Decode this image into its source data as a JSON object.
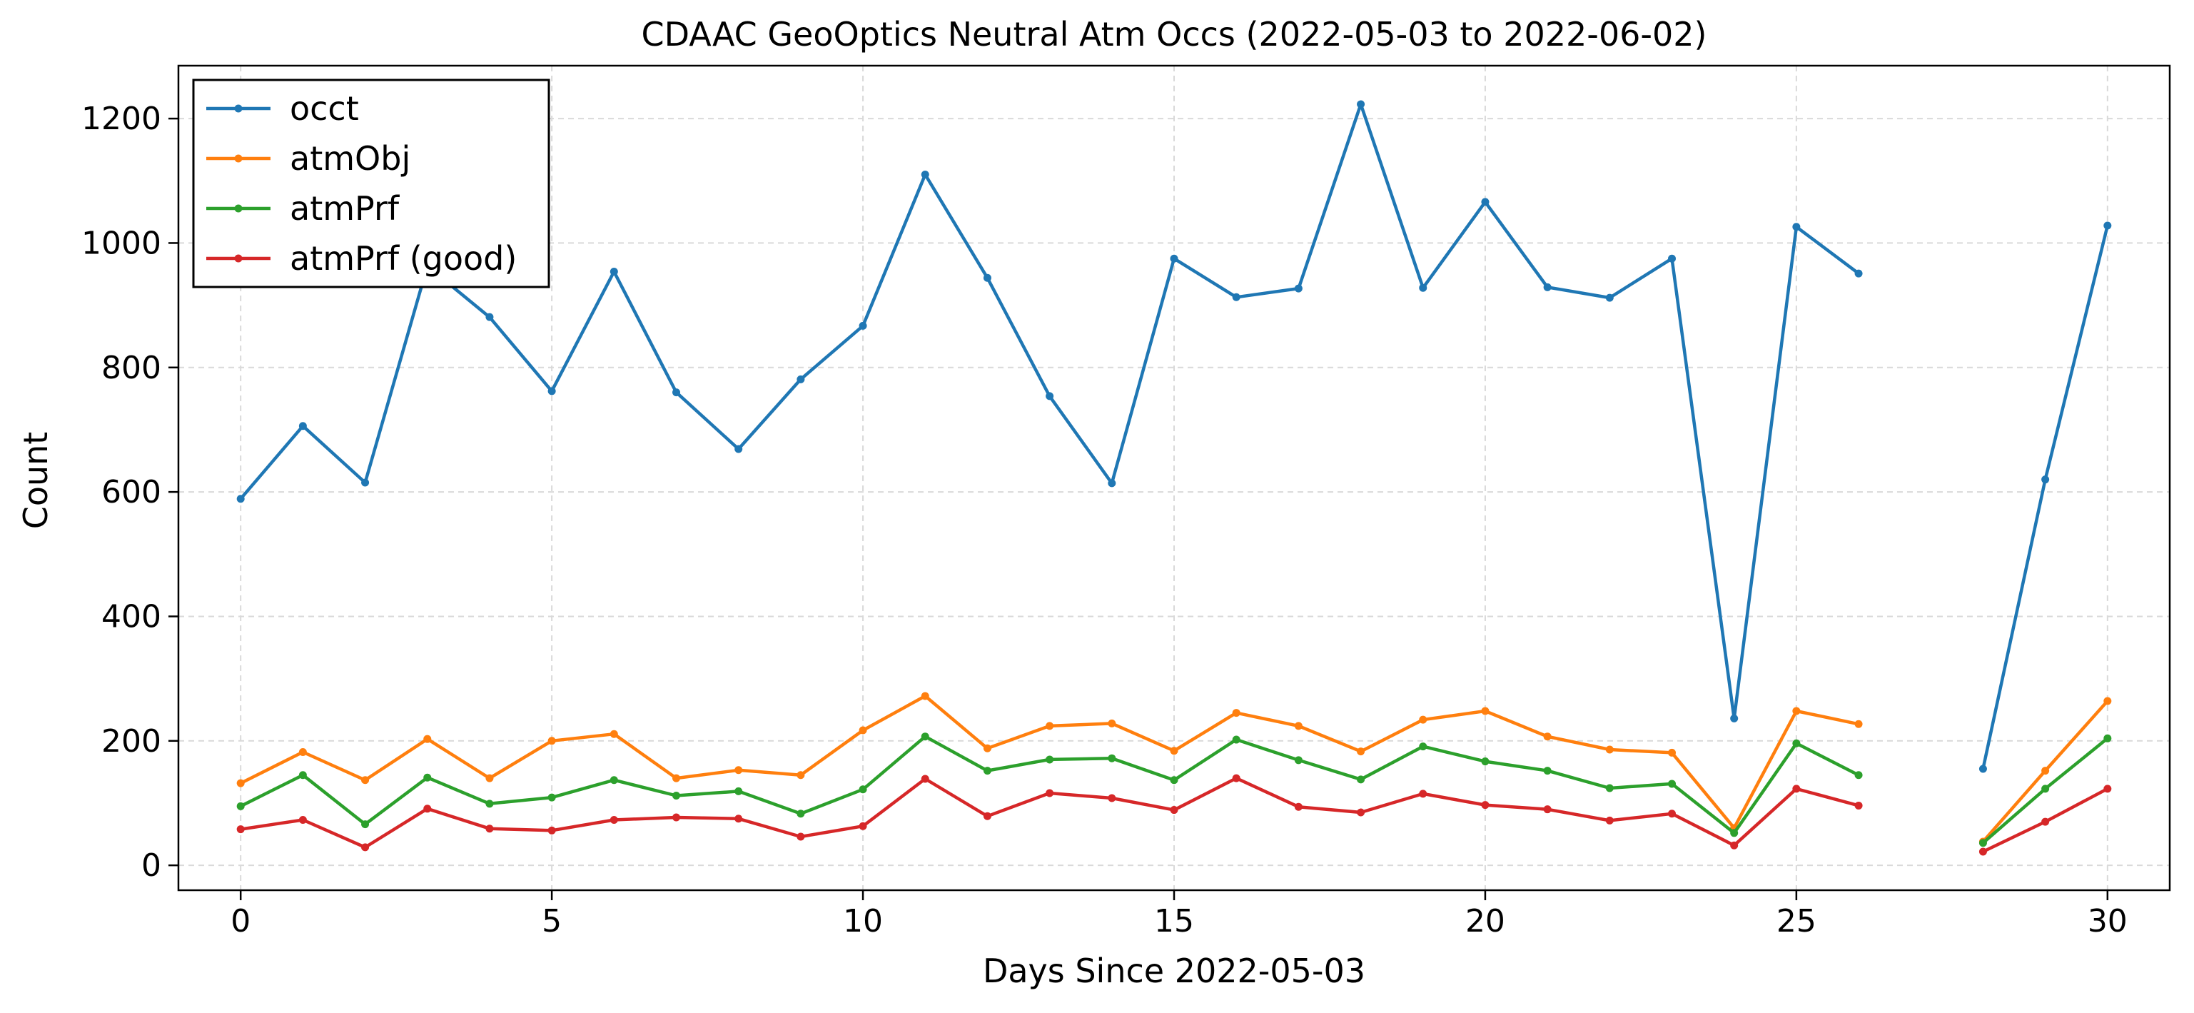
{
  "chart_data": {
    "type": "line",
    "title": "CDAAC GeoOptics Neutral Atm Occs (2022-05-03 to 2022-06-02)",
    "xlabel": "Days Since 2022-05-03",
    "ylabel": "Count",
    "xlim": [
      -1,
      31
    ],
    "ylim": [
      -40,
      1285
    ],
    "xticks": [
      0,
      5,
      10,
      15,
      20,
      25,
      30
    ],
    "yticks": [
      0,
      200,
      400,
      600,
      800,
      1000,
      1200
    ],
    "grid": true,
    "legend_position": "top-left",
    "x": [
      0,
      1,
      2,
      3,
      4,
      5,
      6,
      7,
      8,
      9,
      10,
      11,
      12,
      13,
      14,
      15,
      16,
      17,
      18,
      19,
      20,
      21,
      22,
      23,
      24,
      25,
      26,
      27,
      28,
      29,
      30
    ],
    "series": [
      {
        "name": "occt",
        "color": "#1f77b4",
        "values": [
          589,
          706,
          615,
          963,
          881,
          762,
          954,
          760,
          669,
          781,
          867,
          1110,
          944,
          754,
          614,
          975,
          913,
          927,
          1223,
          928,
          1066,
          929,
          912,
          975,
          236,
          1026,
          951,
          null,
          155,
          620,
          1028
        ]
      },
      {
        "name": "atmObj",
        "color": "#ff7f0e",
        "values": [
          132,
          182,
          137,
          203,
          140,
          200,
          211,
          140,
          153,
          145,
          217,
          272,
          188,
          224,
          228,
          184,
          245,
          224,
          183,
          234,
          248,
          207,
          186,
          181,
          60,
          248,
          227,
          null,
          38,
          152,
          264
        ]
      },
      {
        "name": "atmPrf",
        "color": "#2ca02c",
        "values": [
          95,
          145,
          66,
          141,
          99,
          109,
          137,
          112,
          119,
          83,
          122,
          207,
          152,
          170,
          172,
          137,
          202,
          169,
          138,
          191,
          167,
          152,
          124,
          131,
          52,
          196,
          145,
          null,
          36,
          123,
          204
        ]
      },
      {
        "name": "atmPrf (good)",
        "color": "#d62728",
        "values": [
          58,
          73,
          29,
          91,
          59,
          56,
          73,
          77,
          75,
          46,
          63,
          139,
          79,
          116,
          108,
          89,
          140,
          94,
          85,
          115,
          97,
          90,
          72,
          83,
          32,
          123,
          96,
          null,
          22,
          70,
          123
        ]
      }
    ]
  }
}
